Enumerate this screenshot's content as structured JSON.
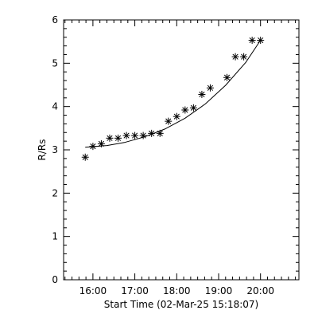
{
  "chart_data": {
    "type": "scatter",
    "xlabel": "Start Time (02-Mar-25 15:18:07)",
    "ylabel": "R/Rs",
    "xlim": [
      "15:18",
      "20:55"
    ],
    "ylim": [
      0,
      6
    ],
    "x_ticks": [
      "16:00",
      "17:00",
      "18:00",
      "19:00",
      "20:00"
    ],
    "y_ticks": [
      0,
      1,
      2,
      3,
      4,
      5,
      6
    ],
    "grid": false,
    "marker": "asterisk",
    "series": [
      {
        "points": [
          {
            "x": "15:49",
            "y": 2.83
          },
          {
            "x": "16:00",
            "y": 3.08
          },
          {
            "x": "16:12",
            "y": 3.14
          },
          {
            "x": "16:24",
            "y": 3.27
          },
          {
            "x": "16:36",
            "y": 3.27
          },
          {
            "x": "16:48",
            "y": 3.33
          },
          {
            "x": "17:00",
            "y": 3.33
          },
          {
            "x": "17:12",
            "y": 3.33
          },
          {
            "x": "17:24",
            "y": 3.38
          },
          {
            "x": "17:36",
            "y": 3.38
          },
          {
            "x": "17:48",
            "y": 3.66
          },
          {
            "x": "18:00",
            "y": 3.77
          },
          {
            "x": "18:12",
            "y": 3.92
          },
          {
            "x": "18:24",
            "y": 3.97
          },
          {
            "x": "18:36",
            "y": 4.28
          },
          {
            "x": "18:48",
            "y": 4.43
          },
          {
            "x": "19:12",
            "y": 4.67
          },
          {
            "x": "19:24",
            "y": 5.15
          },
          {
            "x": "19:36",
            "y": 5.15
          },
          {
            "x": "19:48",
            "y": 5.53
          },
          {
            "x": "20:00",
            "y": 5.53
          }
        ],
        "fit": [
          {
            "x": "15:49",
            "y": 3.06
          },
          {
            "x": "16:20",
            "y": 3.1
          },
          {
            "x": "16:45",
            "y": 3.17
          },
          {
            "x": "17:14",
            "y": 3.3
          },
          {
            "x": "17:43",
            "y": 3.48
          },
          {
            "x": "18:12",
            "y": 3.73
          },
          {
            "x": "18:41",
            "y": 4.06
          },
          {
            "x": "19:10",
            "y": 4.49
          },
          {
            "x": "19:39",
            "y": 5.02
          },
          {
            "x": "20:00",
            "y": 5.53
          }
        ]
      }
    ]
  }
}
